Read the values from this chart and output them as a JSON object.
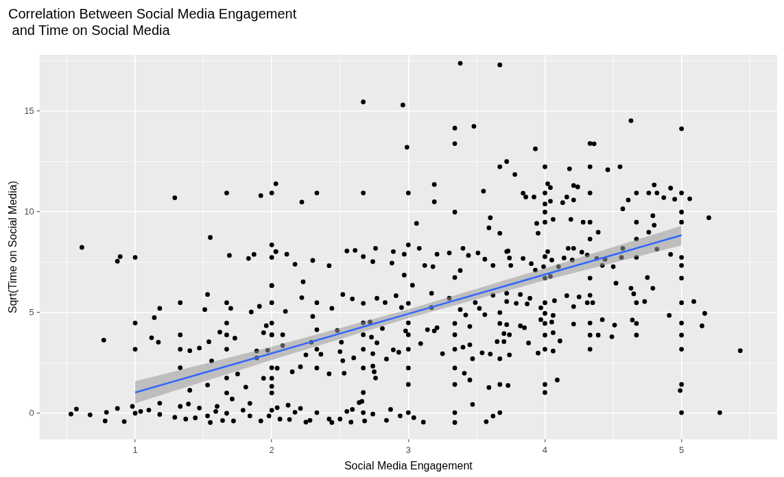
{
  "chart_data": {
    "type": "scatter",
    "title": "Correlation Between Social Media Engagement\n and Time on Social Media",
    "xlabel": "Social Media Engagement",
    "ylabel": "Sqrt(Time on Social Media)",
    "xlim": [
      0.3,
      5.7
    ],
    "ylim": [
      -1.3,
      17.8
    ],
    "xticks": [
      1,
      2,
      3,
      4,
      5
    ],
    "yticks": [
      0,
      5,
      10,
      15
    ],
    "grid": true,
    "legend": false,
    "series": [
      {
        "marker": "circle",
        "color": "#000000",
        "x": [
          0.61,
          0.53,
          0.57,
          0.67,
          0.78,
          0.79,
          0.77,
          0.87,
          0.87,
          0.89,
          0.92,
          1.0,
          1.0,
          1.0,
          1.0,
          0.98,
          1.04,
          1.1,
          1.12,
          1.14,
          1.17,
          1.18,
          1.18,
          1.18,
          1.29,
          1.29,
          1.33,
          1.33,
          1.33,
          1.33,
          1.33,
          1.37,
          1.39,
          1.4,
          1.4,
          1.44,
          1.47,
          1.47,
          1.51,
          1.53,
          1.53,
          1.54,
          1.53,
          1.55,
          1.55,
          1.56,
          1.59,
          1.6,
          1.62,
          1.64,
          1.67,
          1.67,
          1.67,
          1.67,
          1.67,
          1.67,
          1.67,
          1.67,
          1.69,
          1.7,
          1.71,
          1.72,
          1.73,
          1.75,
          1.79,
          1.81,
          1.83,
          1.84,
          1.84,
          1.85,
          1.87,
          1.89,
          1.89,
          1.91,
          1.92,
          1.92,
          1.94,
          1.94,
          1.96,
          1.97,
          2.0,
          2.0,
          2.0,
          2.0,
          2.0,
          2.0,
          2.0,
          2.0,
          2.0,
          2.0,
          2.0,
          2.03,
          2.03,
          1.98,
          2.22,
          2.33,
          2.67,
          2.67,
          2.96,
          2.99,
          3.0,
          3.06,
          3.19,
          3.19,
          3.34,
          3.34,
          3.34,
          3.38,
          3.48,
          3.55,
          3.67,
          3.67,
          3.72,
          3.59,
          3.6,
          3.67,
          2.03,
          2.11,
          2.17,
          2.3,
          2.42,
          2.55,
          2.61,
          2.67,
          2.74,
          2.76,
          2.89,
          2.88,
          2.97,
          3.0,
          3.08,
          3.12,
          3.18,
          3.21,
          3.3,
          3.4,
          3.44,
          3.51,
          3.56,
          3.62,
          3.72,
          2.0,
          2.22,
          2.23,
          2.1,
          2.3,
          2.33,
          2.33,
          2.44,
          2.52,
          2.59,
          2.67,
          2.67,
          2.72,
          2.77,
          2.83,
          2.91,
          2.95,
          3.0,
          3.0,
          2.98,
          3.03,
          2.97,
          3.17,
          3.17,
          3.3,
          3.34,
          3.34,
          3.38,
          3.38,
          3.42,
          3.49,
          3.52,
          3.56,
          3.62,
          3.67,
          3.67,
          3.72,
          2.0,
          2.08,
          2.08,
          2.25,
          2.29,
          2.33,
          2.36,
          2.48,
          2.5,
          2.51,
          2.52,
          2.6,
          2.67,
          2.67,
          2.73,
          2.74,
          2.77,
          2.81,
          2.84,
          2.89,
          2.93,
          3.0,
          3.0,
          3.09,
          3.14,
          3.19,
          3.21,
          3.25,
          3.34,
          3.34,
          3.4,
          3.45,
          3.45,
          3.47,
          3.54,
          3.6,
          3.65,
          3.67,
          3.7,
          3.7,
          2.0,
          2.04,
          2.15,
          2.21,
          2.33,
          2.42,
          2.53,
          2.67,
          2.67,
          2.74,
          2.75,
          2.76,
          3.0,
          3.0,
          3.34,
          3.34,
          3.41,
          3.45,
          3.47,
          3.59,
          3.67,
          3.73,
          2.04,
          2.06,
          2.12,
          2.13,
          2.17,
          2.21,
          2.25,
          2.28,
          2.33,
          2.42,
          2.44,
          2.5,
          2.55,
          2.58,
          2.59,
          2.64,
          2.66,
          2.67,
          2.68,
          2.74,
          2.84,
          2.87,
          2.94,
          3.0,
          3.04,
          3.11,
          3.34,
          3.34,
          3.57,
          3.62,
          3.67,
          4.63,
          5.0,
          3.93,
          4.33,
          4.36,
          4.0,
          4.18,
          4.33,
          4.46,
          4.55,
          3.78,
          4.02,
          4.04,
          4.21,
          4.24,
          3.84,
          3.86,
          3.92,
          4.0,
          4.0,
          4.04,
          4.13,
          4.16,
          4.21,
          4.33,
          4.57,
          4.61,
          4.67,
          4.76,
          4.8,
          4.82,
          4.87,
          4.92,
          4.95,
          5.0,
          5.06,
          5.0,
          5.0,
          5.2,
          4.0,
          4.0,
          4.06,
          4.19,
          3.94,
          3.95,
          4.28,
          4.33,
          4.33,
          4.39,
          4.67,
          4.79,
          4.8,
          4.76,
          4.67,
          4.57,
          4.82,
          4.92,
          4.67,
          4.56,
          5.0,
          5.0,
          5.0,
          4.75,
          4.79,
          4.63,
          4.65,
          4.67,
          4.73,
          4.52,
          4.42,
          4.44,
          4.5,
          4.38,
          4.33,
          4.33,
          4.31,
          4.35,
          3.73,
          3.74,
          3.84,
          3.9,
          3.93,
          4.0,
          4.02,
          4.05,
          4.04,
          4.0,
          3.99,
          4.1,
          4.14,
          4.17,
          4.21,
          4.2,
          4.27,
          4.31,
          3.75,
          3.72,
          3.82,
          3.89,
          3.79,
          3.87,
          4.0,
          3.97,
          4.07,
          4.0,
          4.06,
          3.97,
          4.0,
          4.05,
          4.16,
          4.21,
          4.25,
          4.21,
          4.33,
          4.42,
          4.51,
          4.64,
          4.67,
          4.91,
          5.0,
          5.09,
          5.17,
          5.15,
          5.0,
          5.0,
          5.0,
          5.43,
          4.67,
          4.49,
          4.39,
          4.33,
          4.33,
          4.11,
          4.06,
          4.0,
          4.0,
          4.06,
          3.95,
          3.88,
          3.74,
          3.85,
          3.82,
          3.72,
          3.74,
          4.09,
          4.0,
          4.0,
          5.0,
          4.99,
          5.0,
          5.28
        ],
        "values": [
          8.24,
          -0.04,
          0.21,
          -0.08,
          -0.38,
          0.05,
          3.63,
          0.24,
          7.55,
          7.78,
          -0.41,
          7.74,
          4.48,
          3.18,
          0,
          0.34,
          0.09,
          0.16,
          3.75,
          4.75,
          3.53,
          5.21,
          0.5,
          -0.06,
          10.7,
          -0.2,
          5.49,
          3.89,
          3.18,
          2.26,
          0.34,
          -0.29,
          0.46,
          1.14,
          3.11,
          -0.23,
          3.24,
          0.26,
          5.15,
          5.9,
          1.4,
          3.55,
          -0.13,
          8.73,
          -0.46,
          2.6,
          0.09,
          0.34,
          4.03,
          -0.36,
          10.94,
          5.49,
          4.48,
          3.89,
          3.18,
          1.75,
          1.01,
          0,
          7.84,
          5.21,
          0.71,
          -0.38,
          3.73,
          1.95,
          0.15,
          1.3,
          7.69,
          -0.13,
          0.49,
          5.03,
          7.89,
          2.75,
          3.09,
          5.31,
          10.81,
          -0.38,
          4.0,
          1.74,
          4.35,
          3.13,
          10.94,
          8.36,
          7.74,
          6.34,
          5.49,
          4.48,
          3.89,
          2.26,
          1.34,
          1.01,
          0.15,
          11.4,
          8.03,
          -0.13,
          10.49,
          10.94,
          15.46,
          10.94,
          15.31,
          13.21,
          10.94,
          9.43,
          11.36,
          10.5,
          14.16,
          13.39,
          9.99,
          17.38,
          14.25,
          11.03,
          17.3,
          12.24,
          12.5,
          9.21,
          9.71,
          8.94,
          8.03,
          7.9,
          7.4,
          7.59,
          7.33,
          8.06,
          8.09,
          7.78,
          7.53,
          8.19,
          8.03,
          7.46,
          7.9,
          8.36,
          8.19,
          7.34,
          7.28,
          7.9,
          7.96,
          8.19,
          7.84,
          7.96,
          7.65,
          7.34,
          8.03,
          6.34,
          5.74,
          6.53,
          5.06,
          4.81,
          5.49,
          4.15,
          5.21,
          5.9,
          5.68,
          5.46,
          4.49,
          4.53,
          5.71,
          5.5,
          5.84,
          5.25,
          5.46,
          4.49,
          4.09,
          6.36,
          6.86,
          5.96,
          5.25,
          5.71,
          6.74,
          4.46,
          7.09,
          5.15,
          4.88,
          5.5,
          5.21,
          4.9,
          5.86,
          5.0,
          4.46,
          5.55,
          3.9,
          3.9,
          3.36,
          2.9,
          3.53,
          3.18,
          2.93,
          4.11,
          3.06,
          3.53,
          2.61,
          2.75,
          3.9,
          3.18,
          3.78,
          2.96,
          3.5,
          4.21,
          2.69,
          3.15,
          3.03,
          3.9,
          3.18,
          3.46,
          4.15,
          4.09,
          4.25,
          2.96,
          3.9,
          3.18,
          3.28,
          4.31,
          3.4,
          2.71,
          3.0,
          2.94,
          3.56,
          2.71,
          3.56,
          3.96,
          1.74,
          2.24,
          2.06,
          2.31,
          2.25,
          1.96,
          1.99,
          2.25,
          1.03,
          2.34,
          2.06,
          1.75,
          2.25,
          1.43,
          2.25,
          1.43,
          1.99,
          1.65,
          0.44,
          1.28,
          1.43,
          1.38,
          0.28,
          -0.29,
          0.4,
          -0.31,
          0.05,
          0.24,
          -0.44,
          -0.35,
          0.03,
          -0.29,
          -0.46,
          -0.29,
          0.09,
          -0.44,
          0.19,
          0.53,
          0.59,
          0.03,
          -0.38,
          -0.04,
          -0.35,
          0.19,
          -0.13,
          0.03,
          -0.22,
          -0.44,
          0.03,
          -0.46,
          -0.42,
          -0.14,
          0.03,
          14.53,
          14.13,
          13.13,
          13.4,
          13.38,
          12.24,
          12.14,
          12.24,
          12.09,
          12.24,
          11.86,
          11.4,
          11.21,
          11.31,
          11.24,
          10.93,
          10.74,
          10.74,
          10.94,
          10.39,
          10.53,
          10.46,
          10.74,
          10.59,
          10.94,
          10.15,
          10.59,
          10.94,
          10.94,
          11.34,
          10.94,
          10.71,
          11.18,
          10.63,
          10.94,
          10.65,
          9.99,
          9.49,
          9.71,
          9.99,
          9.49,
          9.63,
          9.63,
          9.43,
          8.94,
          9.49,
          9.49,
          8.65,
          8.99,
          9.49,
          9.81,
          9.34,
          8.99,
          8.65,
          8.19,
          8.15,
          7.89,
          7.74,
          7.74,
          7.74,
          7.34,
          6.71,
          6.74,
          6.21,
          6.21,
          5.93,
          5.49,
          5.55,
          6.46,
          7.34,
          7.65,
          7.28,
          7.69,
          6.71,
          5.86,
          5.49,
          5.49,
          8.06,
          7.71,
          7.69,
          7.43,
          7.11,
          7.78,
          8.03,
          7.61,
          6.8,
          6.71,
          7.28,
          7.28,
          7.71,
          8.19,
          8.19,
          7.61,
          8.0,
          7.86,
          7.34,
          5.96,
          5.9,
          5.71,
          5.46,
          5.43,
          5.49,
          5.24,
          5.59,
          4.96,
          4.86,
          4.65,
          4.46,
          4.53,
          5.84,
          5.3,
          5.78,
          4.43,
          4.48,
          4.65,
          4.38,
          4.63,
          4.46,
          4.86,
          5.49,
          5.55,
          4.96,
          4.34,
          4.48,
          3.88,
          3.18,
          3.11,
          3.88,
          3.8,
          3.88,
          3.88,
          3.18,
          3.59,
          3.09,
          3.18,
          3.88,
          4.0,
          2.99,
          3.49,
          2.9,
          4.25,
          4.34,
          4.4,
          3.9,
          1.65,
          1.43,
          1.03,
          1.43,
          1.13,
          0.03,
          0.03
        ]
      },
      {
        "type": "line",
        "color": "#3366ff",
        "x": [
          1,
          2,
          3,
          4,
          5
        ],
        "values": [
          1.03,
          2.98,
          4.94,
          6.89,
          8.84
        ],
        "marker": "none",
        "lower": [
          0.49,
          2.65,
          4.72,
          6.6,
          8.34
        ],
        "upper": [
          1.59,
          3.3,
          5.16,
          7.2,
          9.31
        ]
      }
    ]
  }
}
